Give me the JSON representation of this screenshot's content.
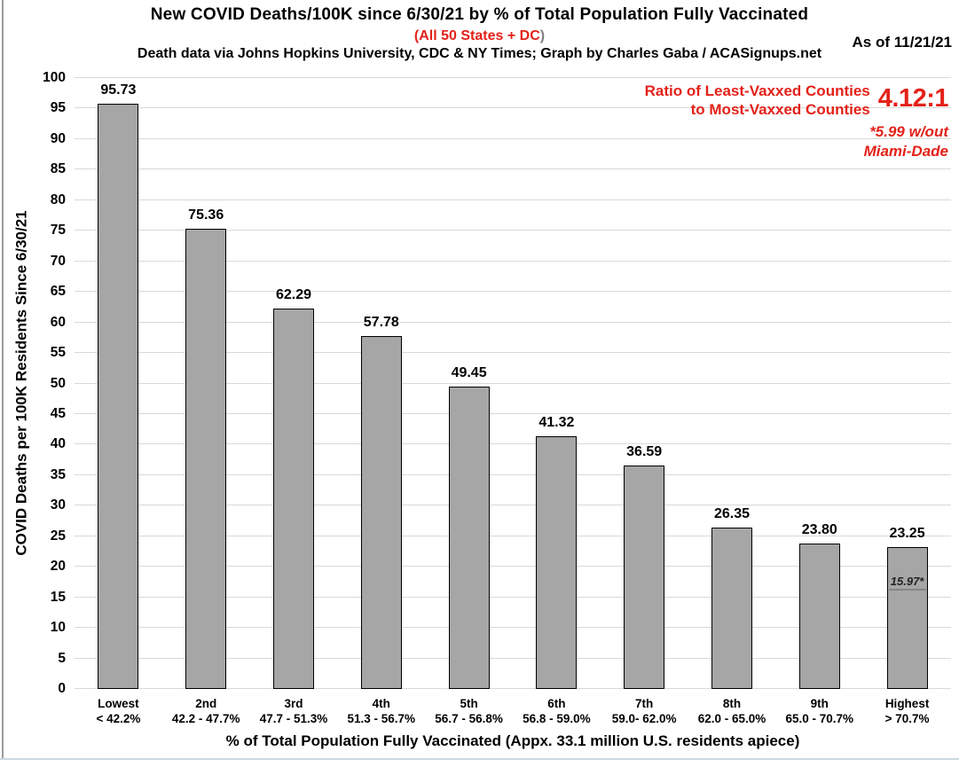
{
  "header": {
    "title": "New COVID Deaths/100K since 6/30/21 by % of Total Population Fully Vaccinated",
    "subtitle_open": "(",
    "subtitle": "All 50 States + DC",
    "subtitle_close": ")",
    "source": "Death data via Johns Hopkins University, CDC & NY Times; Graph by Charles Gaba / ACASignups.net",
    "as_of": "As of 11/21/21"
  },
  "annotation": {
    "ratio_label_line1": "Ratio of Least-Vaxxed Counties",
    "ratio_label_line2": "to Most-Vaxxed Counties",
    "ratio_value": "4.12:1",
    "note_line1": "*5.99 w/out",
    "note_line2": "Miami-Dade"
  },
  "colors": {
    "red": "#e32119",
    "bar_fill": "#a6a6a6",
    "bar_border": "#000000",
    "gridline": "#d9d9d9",
    "paren_gray": "#808080"
  },
  "chart_data": {
    "type": "bar",
    "title": "New COVID Deaths/100K since 6/30/21 by % of Total Population Fully Vaccinated",
    "subtitle": "(All 50 States + DC)",
    "xlabel": "% of Total Population Fully Vaccinated (Appx. 33.1 million U.S. residents apiece)",
    "ylabel": "COVID Deaths per 100K Residents Since 6/30/21",
    "ylim": [
      0,
      100
    ],
    "ytick_step": 5,
    "grid": true,
    "legend": false,
    "categories": [
      "Lowest",
      "2nd",
      "3rd",
      "4th",
      "5th",
      "6th",
      "7th",
      "8th",
      "9th",
      "Highest"
    ],
    "category_ranges": [
      "< 42.2%",
      "42.2 - 47.7%",
      "47.7 - 51.3%",
      "51.3 - 56.7%",
      "56.7 - 56.8%",
      "56.8 - 59.0%",
      "59.0- 62.0%",
      "62.0 - 65.0%",
      "65.0 - 70.7%",
      "> 70.7%"
    ],
    "values": [
      95.73,
      75.36,
      62.29,
      57.78,
      49.45,
      41.32,
      36.59,
      26.35,
      23.8,
      23.25
    ],
    "value_labels": [
      "95.73",
      "75.36",
      "62.29",
      "57.78",
      "49.45",
      "41.32",
      "36.59",
      "26.35",
      "23.80",
      "23.25"
    ],
    "inner_note": {
      "bar_index": 9,
      "text": "15.97*",
      "value": 15.97
    }
  }
}
